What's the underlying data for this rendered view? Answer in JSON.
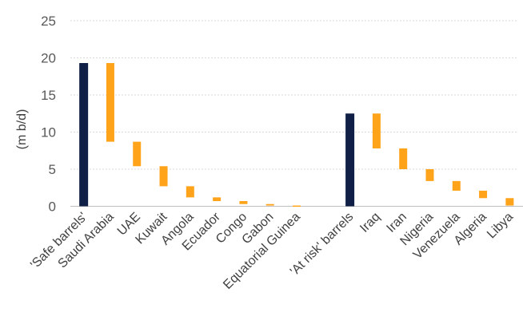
{
  "chart_data": {
    "type": "bar",
    "subtype": "waterfall",
    "title": "",
    "xlabel": "",
    "ylabel": "(m b/d)",
    "ylim": [
      0,
      25
    ],
    "yticks": [
      0,
      5,
      10,
      15,
      20,
      25
    ],
    "grid": true,
    "legend": "none",
    "colors": {
      "total": "#0f1f45",
      "component": "#ffa31a"
    },
    "bars": [
      {
        "category": "'Safe barrels'",
        "low": 0,
        "high": 19.3,
        "kind": "total"
      },
      {
        "category": "Saudi Arabia",
        "low": 8.7,
        "high": 19.3,
        "kind": "component"
      },
      {
        "category": "UAE",
        "low": 5.4,
        "high": 8.7,
        "kind": "component"
      },
      {
        "category": "Kuwait",
        "low": 2.7,
        "high": 5.4,
        "kind": "component"
      },
      {
        "category": "Angola",
        "low": 1.2,
        "high": 2.7,
        "kind": "component"
      },
      {
        "category": "Ecuador",
        "low": 0.7,
        "high": 1.2,
        "kind": "component"
      },
      {
        "category": "Congo",
        "low": 0.3,
        "high": 0.7,
        "kind": "component"
      },
      {
        "category": "Gabon",
        "low": 0.1,
        "high": 0.3,
        "kind": "component"
      },
      {
        "category": "Equatorial Guinea",
        "low": 0,
        "high": 0.1,
        "kind": "component"
      },
      {
        "category": "",
        "low": null,
        "high": null,
        "kind": "gap"
      },
      {
        "category": "'At risk' barrels",
        "low": 0,
        "high": 12.5,
        "kind": "total"
      },
      {
        "category": "Iraq",
        "low": 7.8,
        "high": 12.5,
        "kind": "component"
      },
      {
        "category": "Iran",
        "low": 5.0,
        "high": 7.8,
        "kind": "component"
      },
      {
        "category": "Nigeria",
        "low": 3.4,
        "high": 5.0,
        "kind": "component"
      },
      {
        "category": "Venezuela",
        "low": 2.1,
        "high": 3.4,
        "kind": "component"
      },
      {
        "category": "Algeria",
        "low": 1.1,
        "high": 2.1,
        "kind": "component"
      },
      {
        "category": "Libya",
        "low": 0.1,
        "high": 1.1,
        "kind": "component"
      }
    ]
  }
}
